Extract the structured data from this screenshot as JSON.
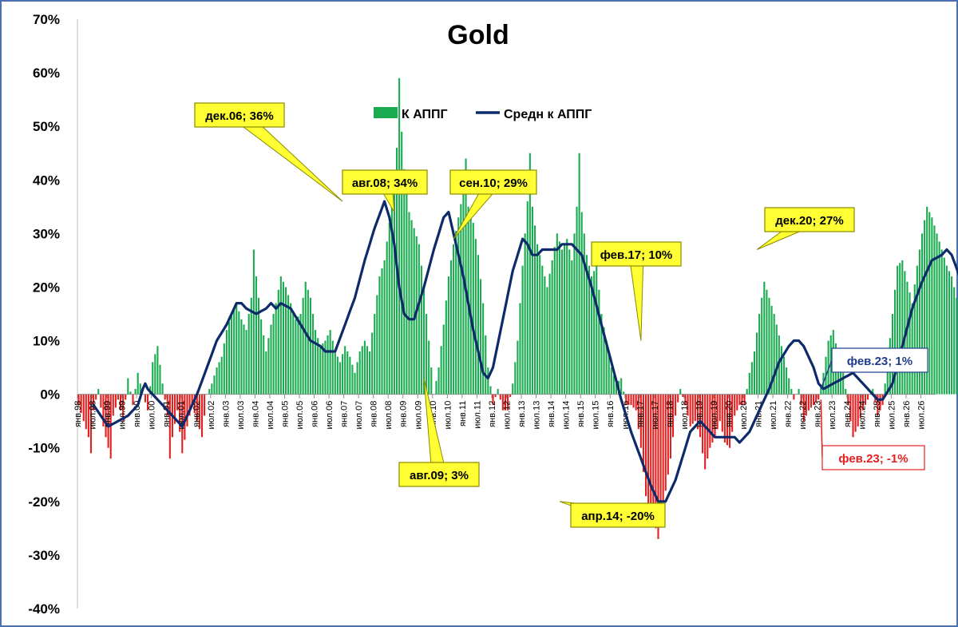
{
  "chart_data": {
    "type": "bar",
    "title": "Gold",
    "ylim": [
      -40,
      70
    ],
    "yticks": [
      "70%",
      "60%",
      "50%",
      "40%",
      "30%",
      "20%",
      "10%",
      "0%",
      "-10%",
      "-20%",
      "-30%",
      "-40%"
    ],
    "xticks": [
      "янв.98",
      "июл.98",
      "янв.99",
      "июл.99",
      "янв.00",
      "июл.00",
      "янв.01",
      "июл.01",
      "янв.02",
      "июл.02",
      "янв.03",
      "июл.03",
      "янв.04",
      "июл.04",
      "янв.05",
      "июл.05",
      "янв.06",
      "июл.06",
      "янв.07",
      "июл.07",
      "янв.08",
      "июл.08",
      "янв.09",
      "июл.09",
      "янв.10",
      "июл.10",
      "янв.11",
      "июл.11",
      "янв.12",
      "июл.12",
      "янв.13",
      "июл.13",
      "янв.14",
      "июл.14",
      "янв.15",
      "июл.15",
      "янв.16",
      "июл.16",
      "янв.17",
      "июл.17",
      "янв.18",
      "июл.18",
      "янв.19",
      "июл.19",
      "янв.20",
      "июл.20",
      "янв.21",
      "июл.21",
      "янв.22",
      "июл.22",
      "янв.23",
      "июл.23",
      "янв.24",
      "июл.24",
      "янв.25",
      "июл.25",
      "янв.26",
      "июл.26"
    ],
    "grid": false,
    "legend_position": "top-center",
    "series": [
      {
        "name": "К АППГ",
        "type": "bar",
        "color_positive": "#1aab50",
        "color_negative": "#e41f1f"
      },
      {
        "name": "Средн к АППГ",
        "type": "line",
        "color": "#0d2a6b"
      }
    ],
    "bar_knots": [
      [
        0,
        -2
      ],
      [
        2,
        -5
      ],
      [
        4,
        -8
      ],
      [
        5,
        -11
      ],
      [
        6,
        -3
      ],
      [
        8,
        1
      ],
      [
        10,
        -6
      ],
      [
        12,
        -10
      ],
      [
        13,
        -12
      ],
      [
        14,
        -4
      ],
      [
        16,
        -1
      ],
      [
        18,
        -5
      ],
      [
        20,
        3
      ],
      [
        22,
        -2
      ],
      [
        24,
        4
      ],
      [
        26,
        0
      ],
      [
        28,
        -3
      ],
      [
        30,
        6
      ],
      [
        32,
        9
      ],
      [
        34,
        2
      ],
      [
        36,
        -4
      ],
      [
        37,
        -12
      ],
      [
        38,
        -8
      ],
      [
        40,
        -3
      ],
      [
        42,
        -11
      ],
      [
        44,
        -6
      ],
      [
        46,
        -2
      ],
      [
        48,
        -5
      ],
      [
        50,
        -8
      ],
      [
        52,
        0
      ],
      [
        54,
        2
      ],
      [
        56,
        5
      ],
      [
        58,
        7
      ],
      [
        60,
        12
      ],
      [
        62,
        15
      ],
      [
        64,
        17
      ],
      [
        66,
        14
      ],
      [
        68,
        12
      ],
      [
        70,
        18
      ],
      [
        71,
        27
      ],
      [
        72,
        22
      ],
      [
        74,
        14
      ],
      [
        76,
        8
      ],
      [
        78,
        13
      ],
      [
        80,
        17
      ],
      [
        82,
        22
      ],
      [
        84,
        20
      ],
      [
        86,
        17
      ],
      [
        88,
        14
      ],
      [
        90,
        15
      ],
      [
        92,
        21
      ],
      [
        94,
        18
      ],
      [
        96,
        12
      ],
      [
        98,
        9
      ],
      [
        100,
        10
      ],
      [
        102,
        12
      ],
      [
        104,
        8
      ],
      [
        106,
        6
      ],
      [
        108,
        9
      ],
      [
        110,
        7
      ],
      [
        112,
        4
      ],
      [
        114,
        8
      ],
      [
        116,
        10
      ],
      [
        118,
        8
      ],
      [
        120,
        15
      ],
      [
        122,
        22
      ],
      [
        124,
        25
      ],
      [
        126,
        32
      ],
      [
        128,
        40
      ],
      [
        129,
        46
      ],
      [
        130,
        59
      ],
      [
        131,
        49
      ],
      [
        132,
        42
      ],
      [
        133,
        38
      ],
      [
        134,
        34
      ],
      [
        136,
        31
      ],
      [
        138,
        28
      ],
      [
        140,
        20
      ],
      [
        142,
        10
      ],
      [
        144,
        0
      ],
      [
        146,
        5
      ],
      [
        148,
        13
      ],
      [
        150,
        22
      ],
      [
        152,
        28
      ],
      [
        154,
        33
      ],
      [
        156,
        38
      ],
      [
        157,
        44
      ],
      [
        158,
        35
      ],
      [
        160,
        32
      ],
      [
        162,
        26
      ],
      [
        164,
        17
      ],
      [
        166,
        5
      ],
      [
        168,
        -2
      ],
      [
        170,
        1
      ],
      [
        172,
        -3
      ],
      [
        174,
        -3
      ],
      [
        176,
        2
      ],
      [
        178,
        10
      ],
      [
        180,
        24
      ],
      [
        182,
        36
      ],
      [
        183,
        45
      ],
      [
        184,
        35
      ],
      [
        186,
        28
      ],
      [
        188,
        24
      ],
      [
        190,
        20
      ],
      [
        192,
        25
      ],
      [
        194,
        30
      ],
      [
        196,
        27
      ],
      [
        198,
        29
      ],
      [
        200,
        25
      ],
      [
        202,
        35
      ],
      [
        203,
        45
      ],
      [
        204,
        34
      ],
      [
        206,
        26
      ],
      [
        208,
        22
      ],
      [
        210,
        24
      ],
      [
        212,
        15
      ],
      [
        214,
        10
      ],
      [
        216,
        5
      ],
      [
        218,
        2
      ],
      [
        220,
        3
      ],
      [
        222,
        -2
      ],
      [
        224,
        -2
      ],
      [
        226,
        -3
      ],
      [
        228,
        -10
      ],
      [
        230,
        -19
      ],
      [
        232,
        -23
      ],
      [
        234,
        -25
      ],
      [
        235,
        -27
      ],
      [
        236,
        -22
      ],
      [
        238,
        -18
      ],
      [
        240,
        -12
      ],
      [
        242,
        -4
      ],
      [
        244,
        1
      ],
      [
        246,
        -2
      ],
      [
        248,
        -6
      ],
      [
        250,
        -5
      ],
      [
        252,
        -8
      ],
      [
        254,
        -14
      ],
      [
        256,
        -10
      ],
      [
        258,
        -8
      ],
      [
        260,
        -5
      ],
      [
        262,
        -9
      ],
      [
        264,
        -10
      ],
      [
        266,
        -4
      ],
      [
        268,
        -2
      ],
      [
        270,
        -2
      ],
      [
        272,
        4
      ],
      [
        274,
        8
      ],
      [
        276,
        15
      ],
      [
        278,
        21
      ],
      [
        280,
        18
      ],
      [
        282,
        15
      ],
      [
        284,
        11
      ],
      [
        286,
        7
      ],
      [
        288,
        3
      ],
      [
        290,
        -1
      ],
      [
        292,
        1
      ],
      [
        294,
        -5
      ],
      [
        296,
        -3
      ],
      [
        298,
        -2
      ],
      [
        300,
        -1
      ],
      [
        302,
        4
      ],
      [
        304,
        10
      ],
      [
        306,
        12
      ],
      [
        308,
        7
      ],
      [
        310,
        4
      ],
      [
        312,
        -2
      ],
      [
        314,
        -8
      ],
      [
        316,
        -6
      ],
      [
        318,
        -3
      ],
      [
        320,
        -1
      ],
      [
        322,
        1
      ],
      [
        324,
        -4
      ],
      [
        326,
        -2
      ],
      [
        328,
        6
      ],
      [
        330,
        15
      ],
      [
        332,
        24
      ],
      [
        334,
        25
      ],
      [
        336,
        21
      ],
      [
        338,
        17
      ],
      [
        340,
        24
      ],
      [
        342,
        30
      ],
      [
        344,
        35
      ],
      [
        346,
        33
      ],
      [
        348,
        30
      ],
      [
        350,
        27
      ],
      [
        352,
        24
      ],
      [
        354,
        22
      ],
      [
        356,
        18
      ],
      [
        358,
        12
      ],
      [
        360,
        8
      ],
      [
        362,
        3
      ],
      [
        364,
        -3
      ],
      [
        366,
        -8
      ],
      [
        368,
        -10
      ],
      [
        370,
        -6
      ],
      [
        372,
        -2
      ],
      [
        374,
        5
      ],
      [
        376,
        9
      ],
      [
        377,
        15
      ],
      [
        378,
        9
      ],
      [
        380,
        2
      ],
      [
        382,
        -1
      ],
      [
        384,
        -3
      ],
      [
        386,
        -5
      ],
      [
        388,
        -3
      ],
      [
        390,
        -1
      ],
      [
        392,
        2
      ],
      [
        394,
        5
      ],
      [
        396,
        2
      ],
      [
        397,
        0
      ]
    ],
    "line_knots": [
      [
        6,
        -2
      ],
      [
        12,
        -6
      ],
      [
        16,
        -5
      ],
      [
        20,
        -4
      ],
      [
        24,
        -2
      ],
      [
        26,
        1
      ],
      [
        27,
        2
      ],
      [
        28,
        1
      ],
      [
        30,
        0
      ],
      [
        32,
        -1
      ],
      [
        36,
        -3
      ],
      [
        40,
        -5
      ],
      [
        42,
        -6
      ],
      [
        44,
        -4
      ],
      [
        46,
        -2
      ],
      [
        48,
        0
      ],
      [
        52,
        5
      ],
      [
        56,
        10
      ],
      [
        60,
        13
      ],
      [
        64,
        17
      ],
      [
        66,
        17
      ],
      [
        68,
        16
      ],
      [
        72,
        15
      ],
      [
        76,
        16
      ],
      [
        78,
        17
      ],
      [
        80,
        16
      ],
      [
        82,
        17
      ],
      [
        86,
        16
      ],
      [
        90,
        13
      ],
      [
        94,
        10
      ],
      [
        98,
        9
      ],
      [
        100,
        8
      ],
      [
        104,
        8
      ],
      [
        108,
        13
      ],
      [
        112,
        18
      ],
      [
        116,
        25
      ],
      [
        120,
        31
      ],
      [
        124,
        36
      ],
      [
        126,
        33
      ],
      [
        128,
        28
      ],
      [
        130,
        20
      ],
      [
        132,
        15
      ],
      [
        134,
        14
      ],
      [
        136,
        14
      ],
      [
        140,
        20
      ],
      [
        144,
        27
      ],
      [
        148,
        33
      ],
      [
        150,
        34
      ],
      [
        152,
        30
      ],
      [
        156,
        22
      ],
      [
        160,
        12
      ],
      [
        164,
        4
      ],
      [
        166,
        3
      ],
      [
        168,
        5
      ],
      [
        172,
        14
      ],
      [
        176,
        23
      ],
      [
        180,
        29
      ],
      [
        182,
        28
      ],
      [
        184,
        26
      ],
      [
        186,
        26
      ],
      [
        188,
        27
      ],
      [
        190,
        27
      ],
      [
        192,
        27
      ],
      [
        194,
        27
      ],
      [
        196,
        28
      ],
      [
        198,
        28
      ],
      [
        200,
        28
      ],
      [
        202,
        27
      ],
      [
        204,
        26
      ],
      [
        208,
        20
      ],
      [
        212,
        13
      ],
      [
        216,
        6
      ],
      [
        220,
        -1
      ],
      [
        224,
        -7
      ],
      [
        228,
        -12
      ],
      [
        232,
        -17
      ],
      [
        235,
        -20
      ],
      [
        238,
        -20
      ],
      [
        242,
        -16
      ],
      [
        246,
        -10
      ],
      [
        248,
        -7
      ],
      [
        250,
        -6
      ],
      [
        252,
        -5
      ],
      [
        254,
        -6
      ],
      [
        256,
        -7
      ],
      [
        258,
        -8
      ],
      [
        260,
        -8
      ],
      [
        262,
        -8
      ],
      [
        264,
        -8
      ],
      [
        266,
        -8
      ],
      [
        268,
        -9
      ],
      [
        270,
        -8
      ],
      [
        272,
        -7
      ],
      [
        276,
        -3
      ],
      [
        280,
        1
      ],
      [
        284,
        6
      ],
      [
        288,
        9
      ],
      [
        290,
        10
      ],
      [
        292,
        10
      ],
      [
        294,
        9
      ],
      [
        298,
        5
      ],
      [
        300,
        2
      ],
      [
        302,
        1
      ],
      [
        306,
        2
      ],
      [
        310,
        3
      ],
      [
        314,
        4
      ],
      [
        316,
        3
      ],
      [
        320,
        1
      ],
      [
        324,
        -1
      ],
      [
        326,
        -1
      ],
      [
        330,
        2
      ],
      [
        334,
        9
      ],
      [
        338,
        16
      ],
      [
        342,
        21
      ],
      [
        346,
        25
      ],
      [
        350,
        26
      ],
      [
        352,
        27
      ],
      [
        354,
        26
      ],
      [
        358,
        21
      ],
      [
        362,
        14
      ],
      [
        366,
        5
      ],
      [
        368,
        1
      ],
      [
        370,
        -1
      ],
      [
        372,
        0
      ],
      [
        376,
        1
      ],
      [
        380,
        0
      ],
      [
        384,
        -1
      ],
      [
        388,
        0
      ],
      [
        392,
        1
      ],
      [
        394,
        1
      ],
      [
        396,
        1
      ],
      [
        397,
        1
      ]
    ],
    "callouts": [
      {
        "label": "дек.06; 36%",
        "style": "yellow"
      },
      {
        "label": "авг.08; 34%",
        "style": "yellow"
      },
      {
        "label": "сен.10; 29%",
        "style": "yellow"
      },
      {
        "label": "авг.09; 3%",
        "style": "yellow"
      },
      {
        "label": "апр.14; -20%",
        "style": "yellow"
      },
      {
        "label": "фев.17; 10%",
        "style": "yellow"
      },
      {
        "label": "дек.20; 27%",
        "style": "yellow"
      },
      {
        "label": "фев.23; 1%",
        "style": "blue"
      },
      {
        "label": "фев.23; -1%",
        "style": "red"
      }
    ],
    "colors": {
      "bar_positive": "#1aab50",
      "bar_negative": "#e41f1f",
      "line": "#0d2a6b",
      "callout_fill": "#ffff33",
      "callout_border": "#8a8a00",
      "blue_text": "#1f3c8c",
      "red_text": "#e41f1f",
      "frame": "#4a6fb3"
    }
  }
}
